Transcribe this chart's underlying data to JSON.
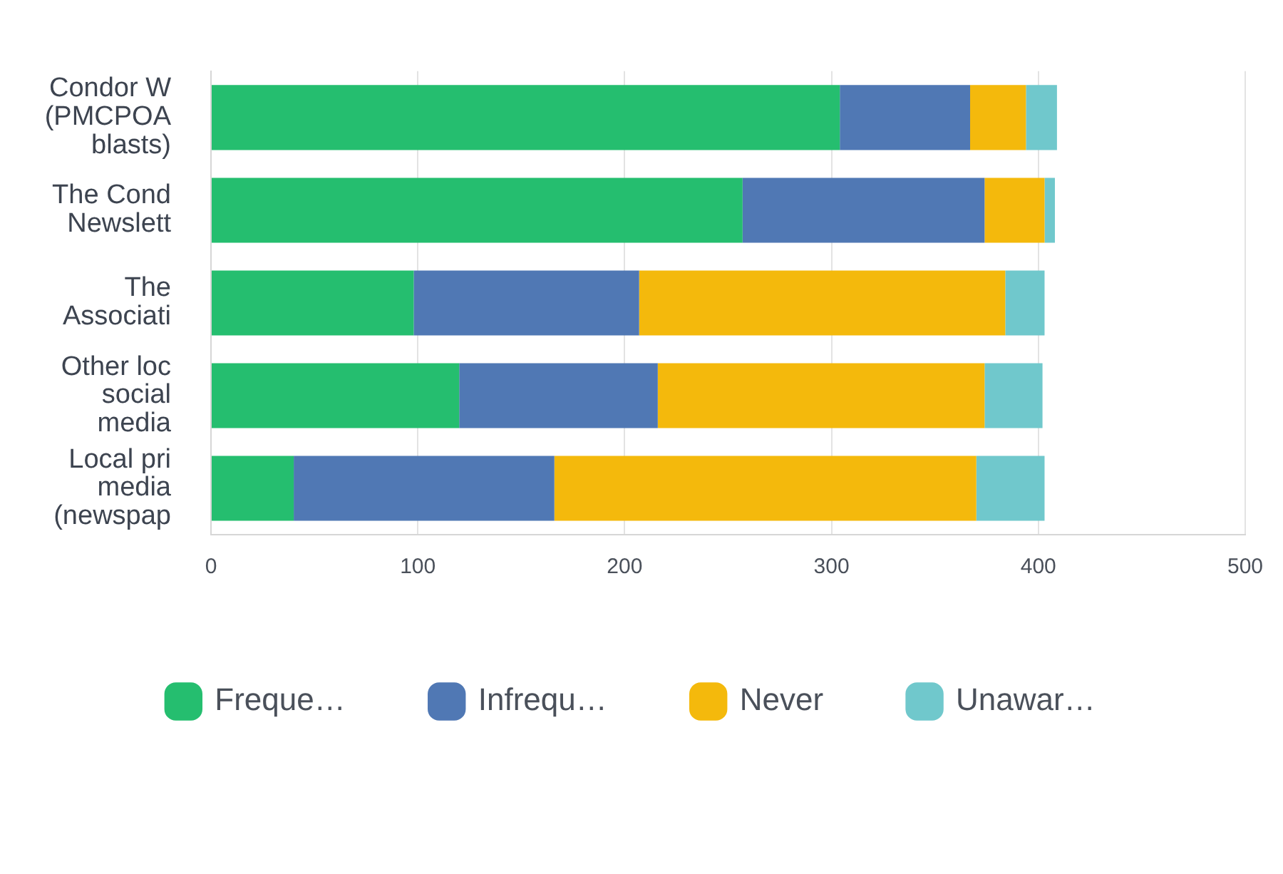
{
  "chart_data": {
    "type": "bar",
    "orientation": "horizontal",
    "stacked": true,
    "categories": [
      "Condor W\n(PMCPOA\nblasts)",
      "The Cond\nNewslett",
      "The\nAssociati",
      "Other loc\nsocial\nmedia",
      "Local pri\nmedia\n(newspap"
    ],
    "series": [
      {
        "name": "Freque…",
        "color": "#25be6f",
        "values": [
          304,
          257,
          98,
          120,
          40
        ]
      },
      {
        "name": "Infrequ…",
        "color": "#5078b4",
        "values": [
          63,
          117,
          109,
          96,
          126
        ]
      },
      {
        "name": "Never",
        "color": "#f4b90c",
        "values": [
          27,
          29,
          177,
          158,
          204
        ]
      },
      {
        "name": "Unawar…",
        "color": "#70c8cc",
        "values": [
          15,
          5,
          19,
          28,
          33
        ]
      }
    ],
    "xlim": [
      0,
      500
    ],
    "xticks": [
      0,
      100,
      200,
      300,
      400,
      500
    ],
    "grid": "x",
    "legend": "bottom"
  }
}
